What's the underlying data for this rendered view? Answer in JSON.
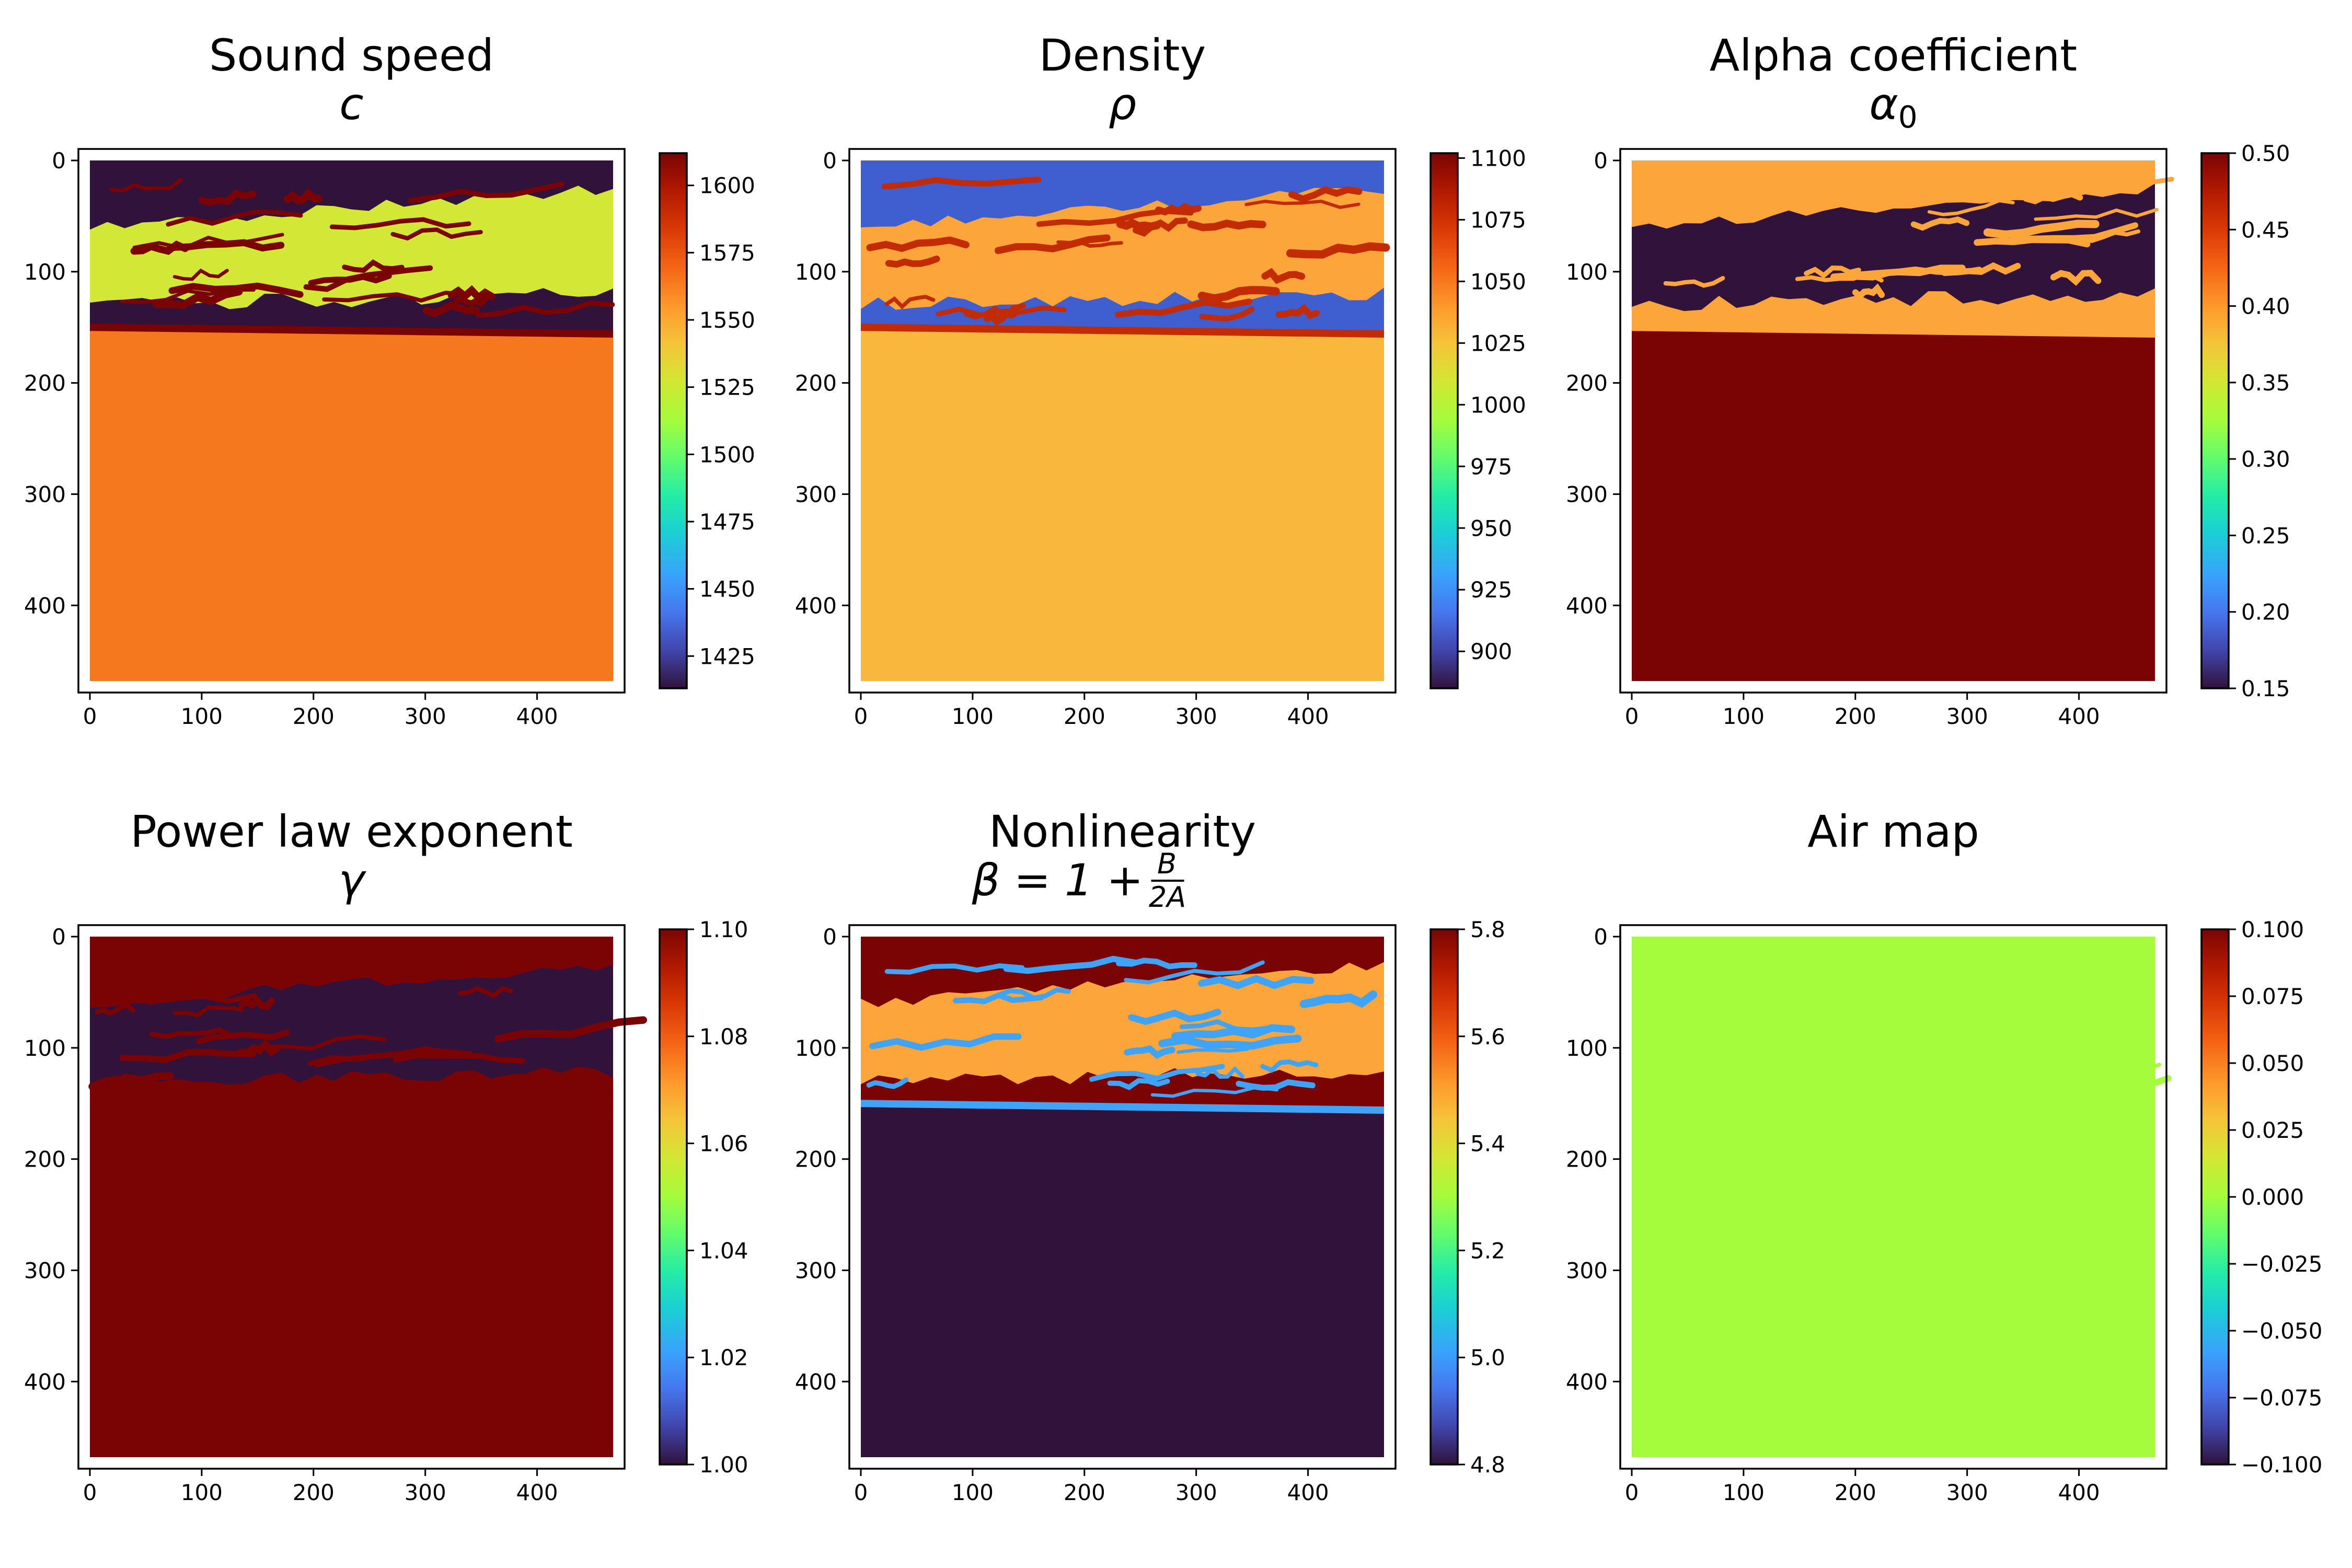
{
  "figure": {
    "layout": "2x3 grid of heatmaps with colorbars",
    "colormap": "turbo"
  },
  "chart_data": [
    {
      "type": "heatmap",
      "title": "Sound speed",
      "subtitle": "c",
      "xticks": [
        0,
        100,
        200,
        300,
        400
      ],
      "yticks": [
        0,
        100,
        200,
        300,
        400
      ],
      "extent": [
        0,
        468
      ],
      "clim": [
        1413,
        1612
      ],
      "colorbar_ticks": [
        1425,
        1450,
        1475,
        1500,
        1525,
        1550,
        1575,
        1600
      ],
      "colors": {
        "background": "#30123b",
        "lesion": "#d3e836",
        "boundary": "#7a0403",
        "bulk": "#f6781e"
      },
      "values": {
        "background": 1413,
        "lesion": 1530,
        "boundary": 1612,
        "bulk": 1560
      }
    },
    {
      "type": "heatmap",
      "title": "Density",
      "subtitle": "ρ",
      "xticks": [
        0,
        100,
        200,
        300,
        400
      ],
      "yticks": [
        0,
        100,
        200,
        300,
        400
      ],
      "extent": [
        0,
        468
      ],
      "clim": [
        885,
        1102
      ],
      "colorbar_ticks": [
        900,
        925,
        950,
        975,
        1000,
        1025,
        1050,
        1075,
        1100
      ],
      "colors": {
        "background": "#3f5ed0",
        "lesion": "#fba53b",
        "boundary": "#c22b03",
        "bulk": "#f9b73d"
      },
      "values": {
        "background": 912,
        "lesion": 1035,
        "boundary": 1085,
        "bulk": 1030
      }
    },
    {
      "type": "heatmap",
      "title": "Alpha coefficient",
      "subtitle": "α",
      "subtitle_sub": "0",
      "xticks": [
        0,
        100,
        200,
        300,
        400
      ],
      "yticks": [
        0,
        100,
        200,
        300,
        400
      ],
      "extent": [
        0,
        468
      ],
      "clim": [
        0.15,
        0.5
      ],
      "colorbar_ticks": [
        "0.15",
        "0.20",
        "0.25",
        "0.30",
        "0.35",
        "0.40",
        "0.45",
        "0.50"
      ],
      "colors": {
        "background": "#fba53b",
        "lesion": "#30123b",
        "boundary": "#fba53b",
        "bulk": "#7a0403"
      },
      "values": {
        "background": 0.4,
        "lesion": 0.15,
        "boundary": 0.4,
        "bulk": 0.5
      }
    },
    {
      "type": "heatmap",
      "title": "Power law exponent",
      "subtitle": "γ",
      "xticks": [
        0,
        100,
        200,
        300,
        400
      ],
      "yticks": [
        0,
        100,
        200,
        300,
        400
      ],
      "extent": [
        0,
        468
      ],
      "clim": [
        1.0,
        1.1
      ],
      "colorbar_ticks": [
        "1.00",
        "1.02",
        "1.04",
        "1.06",
        "1.08",
        "1.10"
      ],
      "colors": {
        "background": "#7a0403",
        "lesion": "#30123b",
        "boundary": "#7a0403",
        "bulk": "#7a0403"
      },
      "values": {
        "background": 1.1,
        "lesion": 1.0,
        "boundary": 1.1,
        "bulk": 1.1
      }
    },
    {
      "type": "heatmap",
      "title": "Nonlinearity",
      "subtitle": "β = 1 + B/2A",
      "subtitle_parts": {
        "lhs": "β = 1 +",
        "num": "B",
        "den": "2A"
      },
      "xticks": [
        0,
        100,
        200,
        300,
        400
      ],
      "yticks": [
        0,
        100,
        200,
        300,
        400
      ],
      "extent": [
        0,
        468
      ],
      "clim": [
        4.8,
        5.8
      ],
      "colorbar_ticks": [
        "4.8",
        "5.0",
        "5.2",
        "5.4",
        "5.6",
        "5.8"
      ],
      "colors": {
        "background": "#7a0403",
        "lesion": "#fba53b",
        "boundary": "#3fa4f7",
        "bulk": "#30123b"
      },
      "values": {
        "background": 5.8,
        "lesion": 5.5,
        "boundary": 4.95,
        "bulk": 4.8
      }
    },
    {
      "type": "heatmap",
      "title": "Air map",
      "subtitle": "",
      "xticks": [
        0,
        100,
        200,
        300,
        400
      ],
      "yticks": [
        0,
        100,
        200,
        300,
        400
      ],
      "extent": [
        0,
        468
      ],
      "clim": [
        -0.1,
        0.1
      ],
      "colorbar_ticks": [
        "−0.100",
        "−0.075",
        "−0.050",
        "−0.025",
        "0.000",
        "0.025",
        "0.050",
        "0.075",
        "0.100"
      ],
      "colors": {
        "background": "#a4fc3c",
        "lesion": "#a4fc3c",
        "boundary": "#a4fc3c",
        "bulk": "#a4fc3c"
      },
      "values": {
        "background": 0,
        "lesion": 0,
        "boundary": 0,
        "bulk": 0
      }
    }
  ]
}
